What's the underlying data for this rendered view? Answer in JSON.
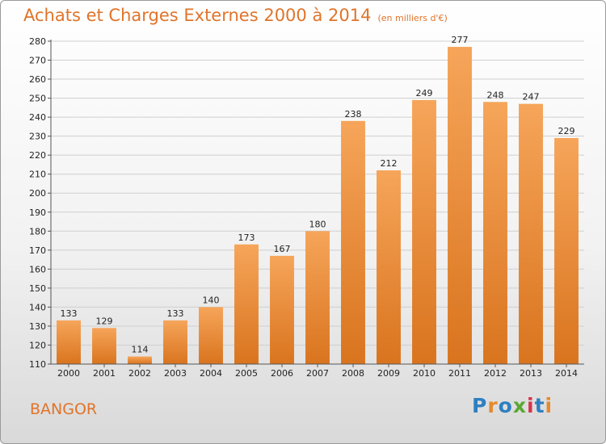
{
  "title": "Achats et Charges Externes 2000 à 2014",
  "subtitle": "(en milliers d'€)",
  "city": "BANGOR",
  "logo": {
    "text": "Proxiti",
    "colors": [
      "#2e7fc1",
      "#e5892c",
      "#2e7fc1",
      "#5aa832",
      "#d6344c",
      "#2e7fc1",
      "#e5892c"
    ]
  },
  "colors": {
    "bar_light": "#f6a55a",
    "bar_dark": "#d9741e",
    "title": "#e0742a",
    "grid": "#cfcfcf"
  },
  "chart_data": {
    "type": "bar",
    "categories": [
      "2000",
      "2001",
      "2002",
      "2003",
      "2004",
      "2005",
      "2006",
      "2007",
      "2008",
      "2009",
      "2010",
      "2011",
      "2012",
      "2013",
      "2014"
    ],
    "values": [
      133,
      129,
      114,
      133,
      140,
      173,
      167,
      180,
      238,
      212,
      249,
      277,
      248,
      247,
      229
    ],
    "ylim": [
      110,
      280
    ],
    "yticks": [
      110,
      120,
      130,
      140,
      150,
      160,
      170,
      180,
      190,
      200,
      210,
      220,
      230,
      240,
      250,
      260,
      270,
      280
    ],
    "grid": true,
    "data_labels": true
  }
}
